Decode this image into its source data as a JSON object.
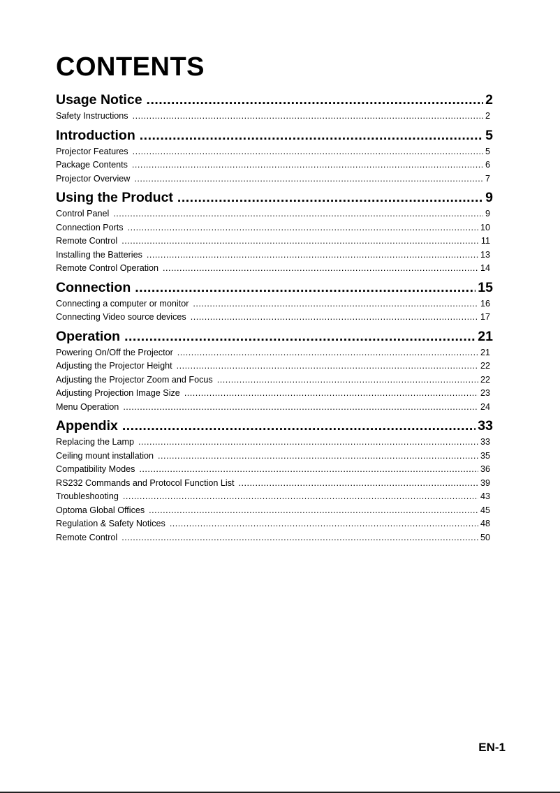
{
  "title": "CONTENTS",
  "sections": [
    {
      "heading": "Usage Notice",
      "page": "2",
      "items": [
        {
          "label": "Safety Instructions",
          "page": "2"
        }
      ]
    },
    {
      "heading": "Introduction",
      "page": "5",
      "items": [
        {
          "label": "Projector Features",
          "page": "5"
        },
        {
          "label": "Package Contents",
          "page": "6"
        },
        {
          "label": "Projector Overview",
          "page": "7"
        }
      ]
    },
    {
      "heading": "Using the Product",
      "page": "9",
      "items": [
        {
          "label": "Control Panel",
          "page": "9"
        },
        {
          "label": "Connection Ports",
          "page": "10"
        },
        {
          "label": "Remote Control",
          "page": "11"
        },
        {
          "label": "Installing the Batteries",
          "page": "13"
        },
        {
          "label": "Remote Control Operation",
          "page": "14"
        }
      ]
    },
    {
      "heading": "Connection",
      "page": "15",
      "items": [
        {
          "label": "Connecting a computer or monitor",
          "page": "16"
        },
        {
          "label": "Connecting Video source devices",
          "page": "17"
        }
      ]
    },
    {
      "heading": "Operation",
      "page": "21",
      "items": [
        {
          "label": "Powering On/Off the Projector",
          "page": "21"
        },
        {
          "label": "Adjusting the Projector Height",
          "page": "22"
        },
        {
          "label": "Adjusting the Projector Zoom and Focus",
          "page": "22"
        },
        {
          "label": "Adjusting Projection Image Size",
          "page": "23"
        },
        {
          "label": "Menu Operation",
          "page": "24"
        }
      ]
    },
    {
      "heading": "Appendix",
      "page": "33",
      "items": [
        {
          "label": "Replacing the Lamp",
          "page": "33"
        },
        {
          "label": "Ceiling mount installation",
          "page": "35"
        },
        {
          "label": "Compatibility Modes",
          "page": "36"
        },
        {
          "label": "RS232 Commands and Protocol Function List",
          "page": "39"
        },
        {
          "label": "Troubleshooting",
          "page": "43"
        },
        {
          "label": "Optoma Global Offices",
          "page": "45"
        },
        {
          "label": "Regulation & Safety Notices",
          "page": "48"
        },
        {
          "label": "Remote Control",
          "page": "50"
        }
      ]
    }
  ],
  "page_number": "EN-1"
}
